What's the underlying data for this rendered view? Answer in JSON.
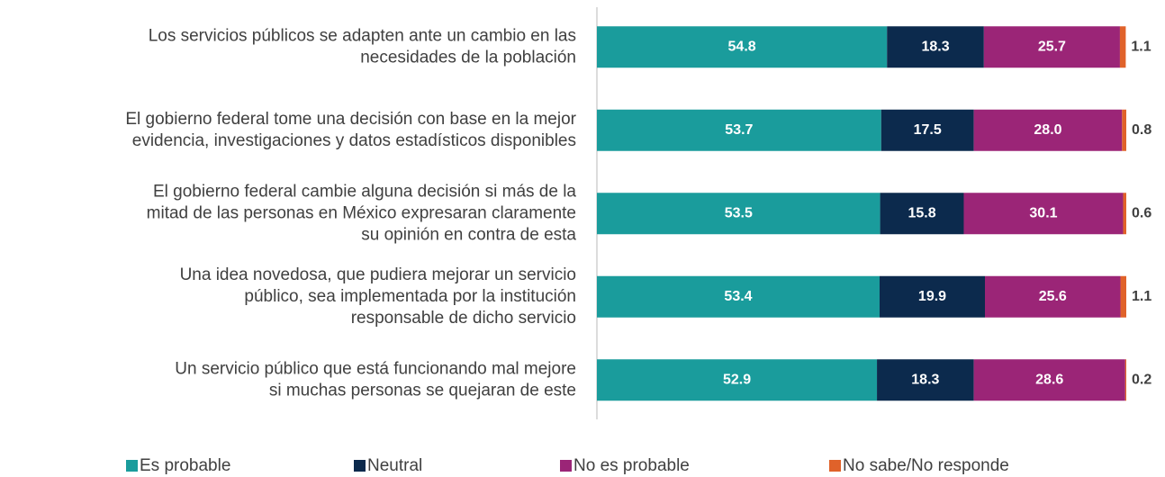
{
  "chart_data": {
    "type": "stacked-barh",
    "categories": [
      [
        "Los servicios públicos se adapten ante un cambio en las",
        "necesidades de la población"
      ],
      [
        "El gobierno federal tome una decisión con base en la mejor",
        "evidencia, investigaciones y datos estadísticos disponibles"
      ],
      [
        "El gobierno federal cambie alguna decisión si más de la",
        "mitad de las personas en México expresaran claramente",
        "su opinión en contra de esta"
      ],
      [
        "Una idea novedosa, que pudiera mejorar un servicio",
        "público, sea implementada por la institución",
        "responsable de dicho servicio"
      ],
      [
        "Un servicio público que está funcionando mal mejore",
        "si muchas personas se quejaran de este"
      ]
    ],
    "series": [
      {
        "name": "Es probable",
        "color": "#1a9c9c",
        "values": [
          54.8,
          53.7,
          53.5,
          53.4,
          52.9
        ],
        "value_labels": [
          "54.8",
          "53.7",
          "53.5",
          "53.4",
          "52.9"
        ]
      },
      {
        "name": "Neutral",
        "color": "#0c2a4d",
        "values": [
          18.3,
          17.5,
          15.8,
          19.9,
          18.3
        ],
        "value_labels": [
          "18.3",
          "17.5",
          "15.8",
          "19.9",
          "18.3"
        ]
      },
      {
        "name": "No es probable",
        "color": "#9b2577",
        "values": [
          25.7,
          28.0,
          30.1,
          25.6,
          28.6
        ],
        "value_labels": [
          "25.7",
          "28.0",
          "30.1",
          "25.6",
          "28.6"
        ]
      },
      {
        "name": "No sabe/No responde",
        "color": "#e0622a",
        "values": [
          1.1,
          0.8,
          0.6,
          1.1,
          0.2
        ],
        "value_labels": [
          "1.1",
          "0.8",
          "0.6",
          "1.1",
          "0.2"
        ]
      }
    ],
    "legend": "bottom"
  }
}
